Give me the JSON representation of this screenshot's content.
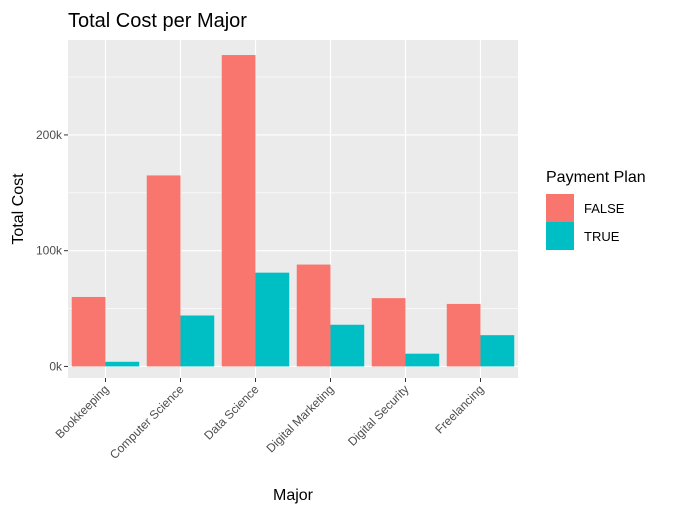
{
  "chart_data": {
    "type": "bar",
    "title": "Total Cost per Major",
    "xlabel": "Major",
    "ylabel": "Total Cost",
    "categories": [
      "Bookkeeping",
      "Computer Science",
      "Data Science",
      "Digital Marketing",
      "Digital Security",
      "Freelancing"
    ],
    "series": [
      {
        "name": "FALSE",
        "values": [
          60000,
          165000,
          269000,
          88000,
          59000,
          54000
        ]
      },
      {
        "name": "TRUE",
        "values": [
          4000,
          44000,
          81000,
          36000,
          11000,
          27000
        ]
      }
    ],
    "ylim": [
      -10000,
      282000
    ],
    "yticks": [
      0,
      100000,
      200000
    ],
    "ytick_labels": [
      "0k",
      "100k",
      "200k"
    ],
    "grid": true,
    "legend": {
      "title": "Payment Plan",
      "placement": "right"
    },
    "colors": {
      "FALSE": "#F8766D",
      "TRUE": "#00BFC4",
      "panel": "#EBEBEB",
      "grid": "#FFFFFF"
    }
  }
}
